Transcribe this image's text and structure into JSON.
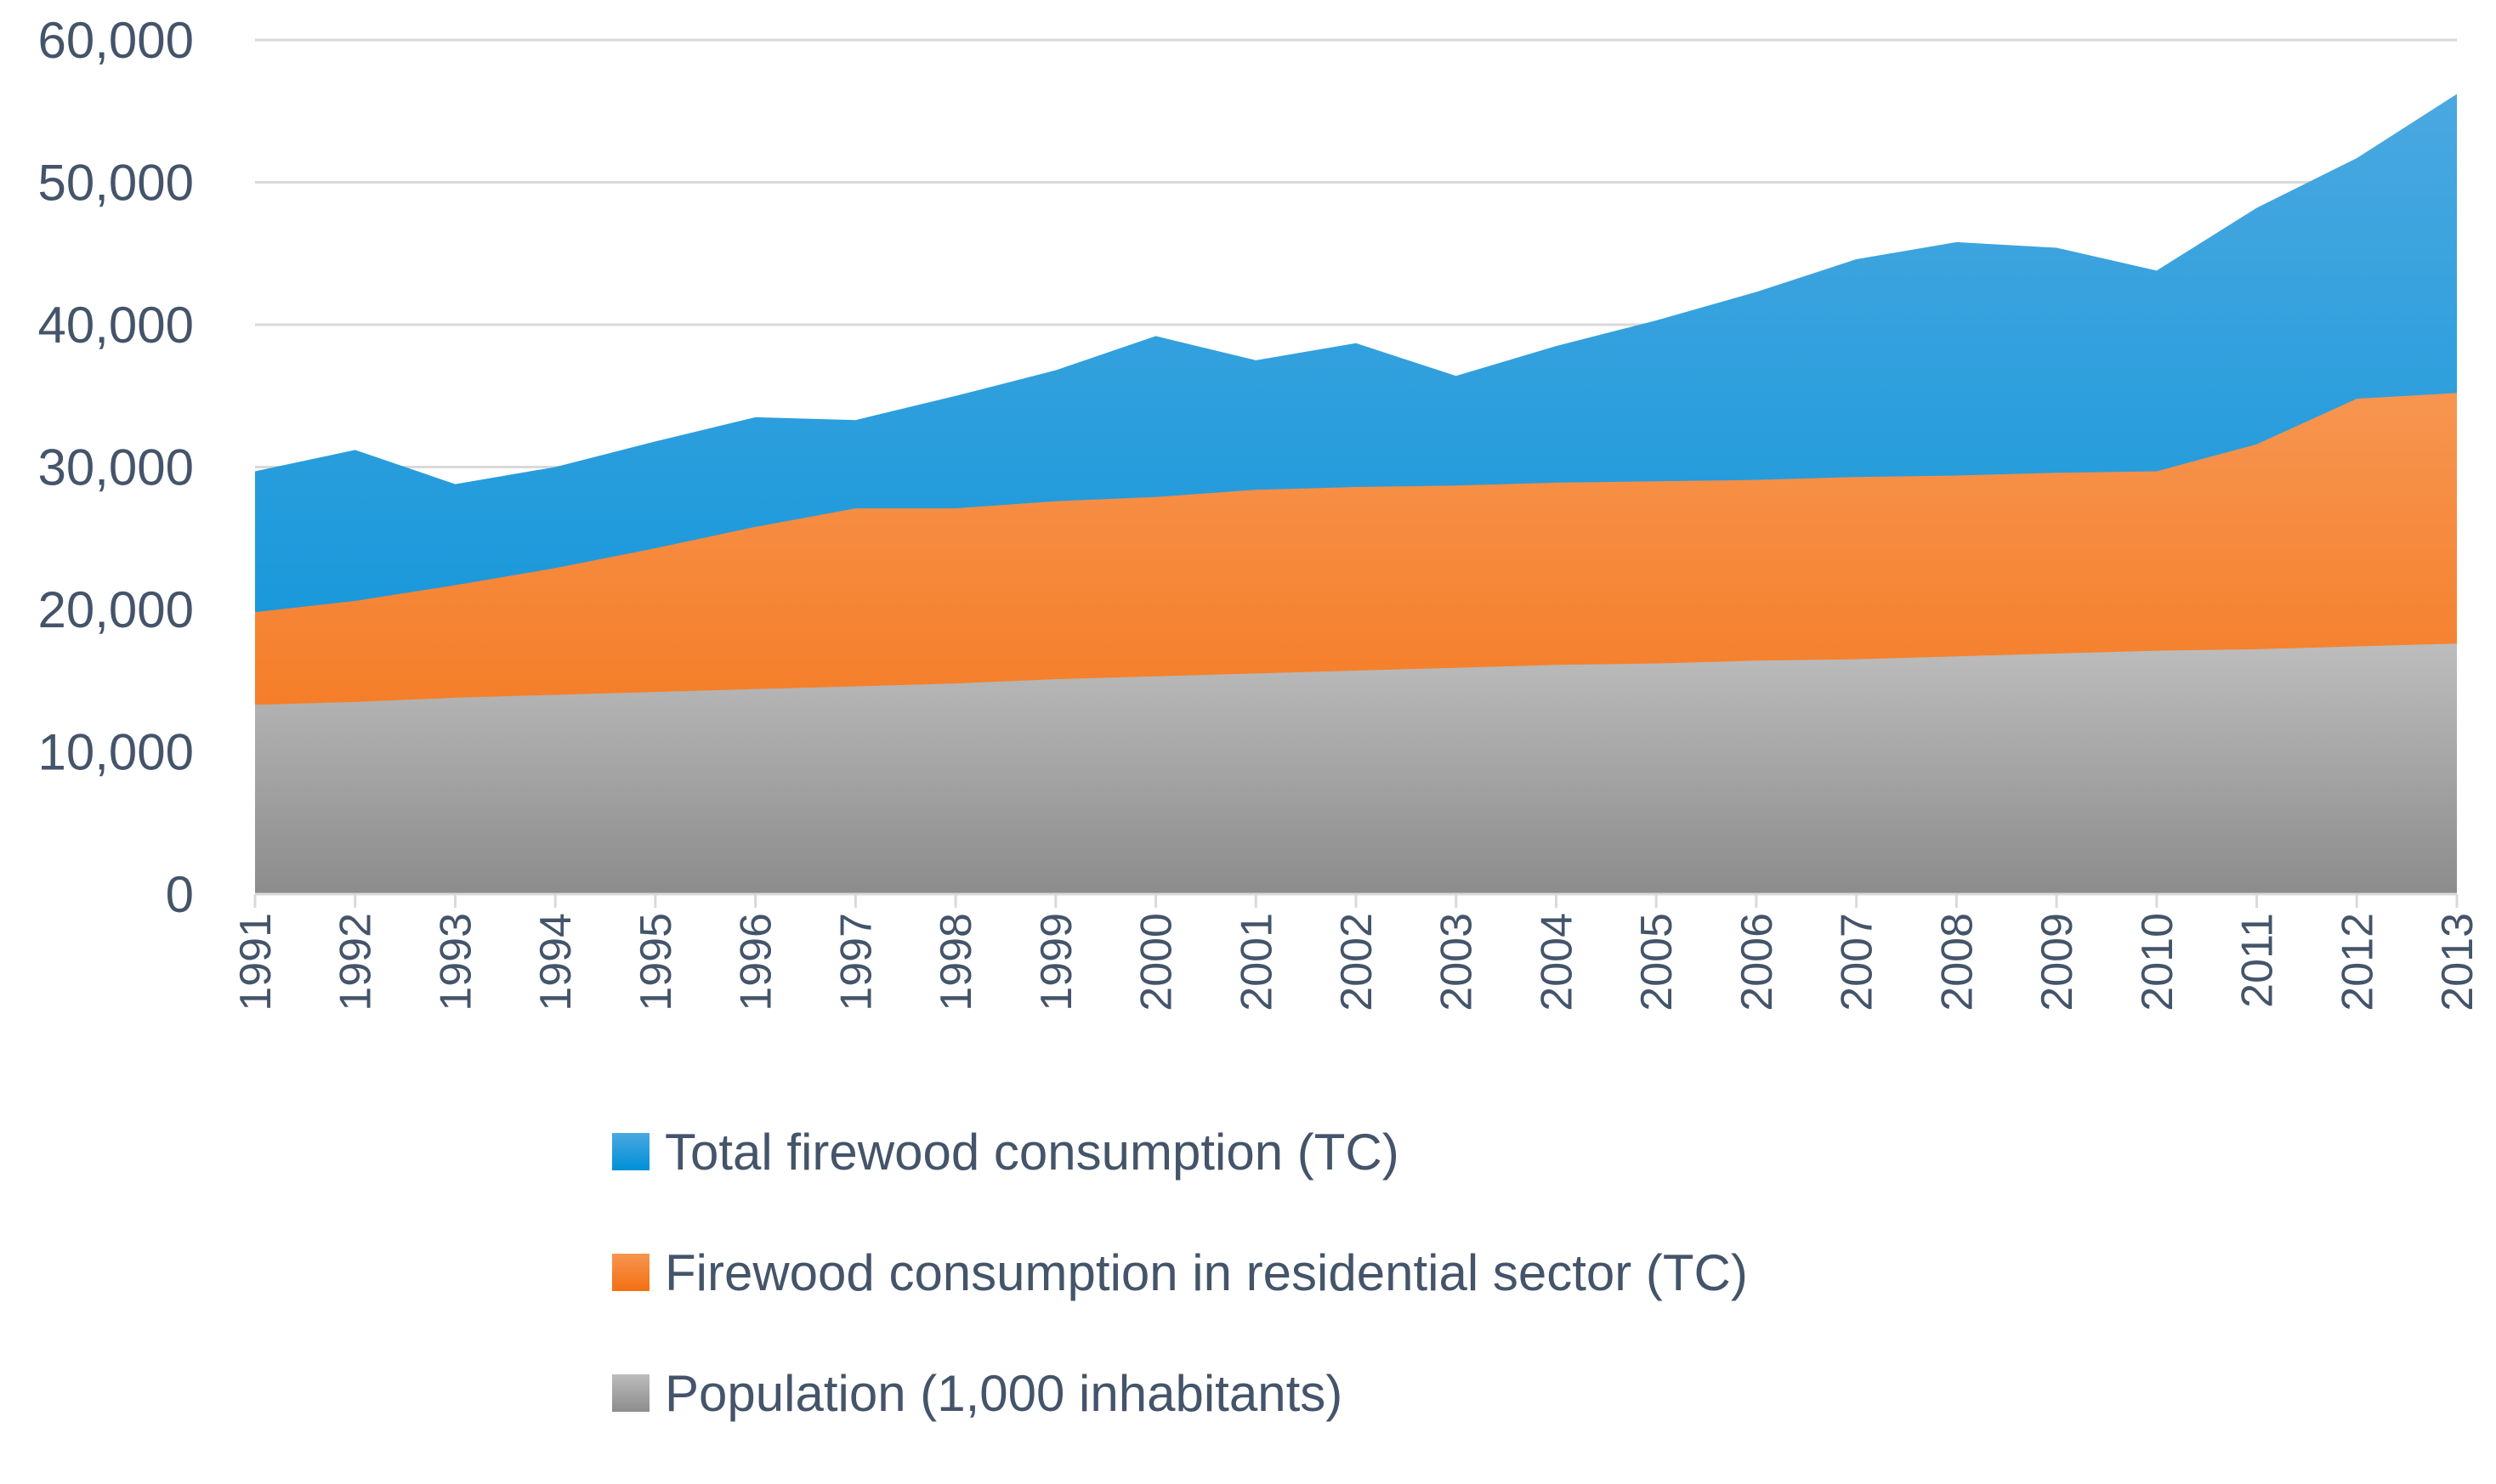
{
  "chart_data": {
    "type": "area",
    "stacked": false,
    "categories": [
      "1991",
      "1992",
      "1993",
      "1994",
      "1995",
      "1996",
      "1997",
      "1998",
      "1999",
      "2000",
      "2001",
      "2002",
      "2003",
      "2004",
      "2005",
      "2006",
      "2007",
      "2008",
      "2009",
      "2010",
      "2011",
      "2012",
      "2013"
    ],
    "ylim": [
      0,
      60000
    ],
    "yticks": [
      "0",
      "10,000",
      "20,000",
      "30,000",
      "40,000",
      "50,000",
      "60,000"
    ],
    "ytick_values": [
      0,
      10000,
      20000,
      30000,
      40000,
      50000,
      60000
    ],
    "grid": true,
    "legend_position": "bottom",
    "series": [
      {
        "name": "Total firewood consumption (TC)",
        "color": "#0B8BD8",
        "values": [
          29700,
          31200,
          28800,
          30000,
          31800,
          33500,
          33300,
          35000,
          36800,
          39200,
          37500,
          38700,
          36400,
          38500,
          40300,
          42300,
          44600,
          45800,
          45400,
          43800,
          48200,
          51700,
          56200
        ]
      },
      {
        "name": "Firewood consumption in residential sector (TC)",
        "color": "#F37320",
        "values": [
          19800,
          20600,
          21700,
          22900,
          24300,
          25800,
          27100,
          27100,
          27600,
          27900,
          28400,
          28600,
          28700,
          28900,
          29000,
          29100,
          29300,
          29400,
          29600,
          29700,
          31600,
          34800,
          35200
        ]
      },
      {
        "name": "Population (1,000 inhabitants)",
        "color": "#A6A6A6",
        "values": [
          13300,
          13500,
          13800,
          14000,
          14200,
          14400,
          14600,
          14800,
          15100,
          15300,
          15500,
          15700,
          15900,
          16100,
          16200,
          16400,
          16500,
          16700,
          16900,
          17100,
          17200,
          17400,
          17600
        ]
      }
    ]
  }
}
